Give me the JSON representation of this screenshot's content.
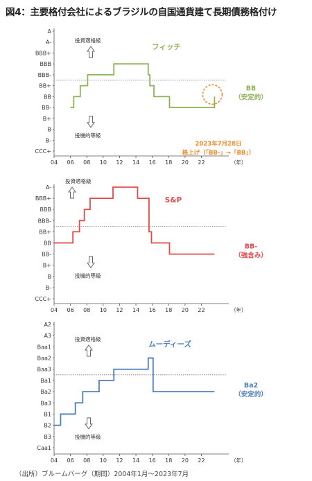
{
  "title": "図4：主要格付会社によるブラジルの自国通貨建て長期債務格付け",
  "source": "（出所）ブルームバーグ（期間）2004年1月～2023年7月",
  "x_ticks": [
    "04",
    "06",
    "08",
    "10",
    "12",
    "14",
    "16",
    "18",
    "20",
    "22"
  ],
  "x_unit": "（年）",
  "chart_data": [
    {
      "type": "line",
      "name": "フィッチ",
      "color": "#8fb458",
      "y_categories": [
        "A",
        "A-",
        "BBB+",
        "BBB",
        "BBB-",
        "BB+",
        "BB",
        "BB-",
        "B+",
        "B",
        "B-",
        "CCC+"
      ],
      "investment_grade_label": "投資適格級",
      "speculative_grade_label": "投機的等級",
      "end_label": [
        "BB",
        "（安定的）"
      ],
      "annotation": [
        "2023年7月28日",
        "格上げ（「BB-」→「BB」）"
      ],
      "annotation_color": "#f08c2a",
      "x": [
        2006.0,
        2006.4,
        2007.2,
        2008.1,
        2011.3,
        2015.5,
        2015.7,
        2016.2,
        2018.1,
        2023.55,
        2023.6
      ],
      "values": [
        "BB-",
        "BB",
        "BB+",
        "BBB-",
        "BBB",
        "BBB-",
        "BB+",
        "BB",
        "BB-",
        "BB-",
        "BB"
      ]
    },
    {
      "type": "line",
      "name": "S&P",
      "color": "#e34a4a",
      "y_categories": [
        "A-",
        "BBB+",
        "BBB",
        "BBB-",
        "BB+",
        "BB",
        "BB-",
        "B+",
        "B",
        "B-",
        "CCC+"
      ],
      "investment_grade_label": "投資適格級",
      "speculative_grade_label": "投機的等級",
      "end_label": [
        "BB-",
        "（強含み）"
      ],
      "x": [
        2004.0,
        2006.3,
        2007.1,
        2007.7,
        2008.4,
        2011.2,
        2012.3,
        2014.2,
        2015.6,
        2015.9,
        2018.1,
        2023.6
      ],
      "values": [
        "BB",
        "BB+",
        "BBB-",
        "BBB",
        "BBB+",
        "A-",
        "A-",
        "BBB+",
        "BB+",
        "BB",
        "BB-",
        "BB-"
      ]
    },
    {
      "type": "line",
      "name": "ムーディーズ",
      "color": "#4b7dc0",
      "y_categories": [
        "A2",
        "A3",
        "Baa1",
        "Baa2",
        "Baa3",
        "Ba1",
        "Ba2",
        "Ba3",
        "B1",
        "B2",
        "B3",
        "Caa1"
      ],
      "investment_grade_label": "投資適格級",
      "speculative_grade_label": "投機的等級",
      "end_label": [
        "Ba2",
        "（安定的）"
      ],
      "x": [
        2004.0,
        2004.8,
        2006.6,
        2007.5,
        2009.5,
        2011.3,
        2015.5,
        2016.1,
        2023.6
      ],
      "values": [
        "B2",
        "B1",
        "Ba3",
        "Ba2",
        "Ba1",
        "Baa3",
        "Baa2",
        "Ba2",
        "Ba2"
      ]
    }
  ]
}
